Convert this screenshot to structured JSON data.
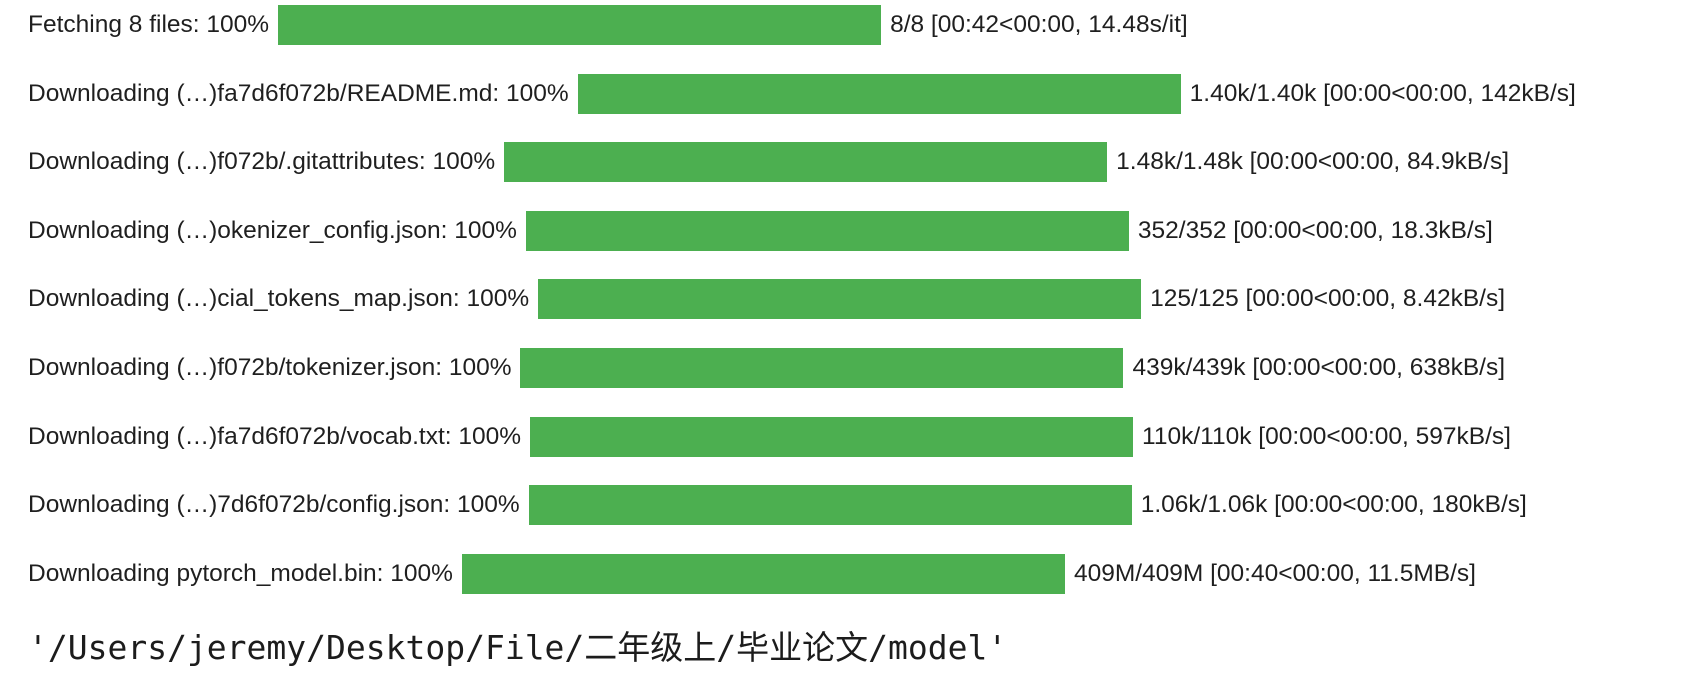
{
  "progress_rows": [
    {
      "label": "Fetching 8 files: 100%",
      "progress": 1.0,
      "stats": "8/8 [00:42<00:00, 14.48s/it]"
    },
    {
      "label": "Downloading (…)fa7d6f072b/README.md: 100%",
      "progress": 1.0,
      "stats": "1.40k/1.40k [00:00<00:00, 142kB/s]"
    },
    {
      "label": "Downloading (…)f072b/.gitattributes: 100%",
      "progress": 1.0,
      "stats": "1.48k/1.48k [00:00<00:00, 84.9kB/s]"
    },
    {
      "label": "Downloading (…)okenizer_config.json: 100%",
      "progress": 1.0,
      "stats": "352/352 [00:00<00:00, 18.3kB/s]"
    },
    {
      "label": "Downloading (…)cial_tokens_map.json: 100%",
      "progress": 1.0,
      "stats": "125/125 [00:00<00:00, 8.42kB/s]"
    },
    {
      "label": "Downloading (…)f072b/tokenizer.json: 100%",
      "progress": 1.0,
      "stats": "439k/439k [00:00<00:00, 638kB/s]"
    },
    {
      "label": "Downloading (…)fa7d6f072b/vocab.txt: 100%",
      "progress": 1.0,
      "stats": "110k/110k [00:00<00:00, 597kB/s]"
    },
    {
      "label": "Downloading (…)7d6f072b/config.json: 100%",
      "progress": 1.0,
      "stats": "1.06k/1.06k [00:00<00:00, 180kB/s]"
    },
    {
      "label": "Downloading pytorch_model.bin: 100%",
      "progress": 1.0,
      "stats": "409M/409M [00:40<00:00, 11.5MB/s]"
    }
  ],
  "output": {
    "path": "'/Users/jeremy/Desktop/File/二年级上/毕业论文/model'"
  },
  "colors": {
    "bar_fill": "#4caf50",
    "bar_track": "#e3e3e3",
    "text": "#1f1f1f"
  }
}
